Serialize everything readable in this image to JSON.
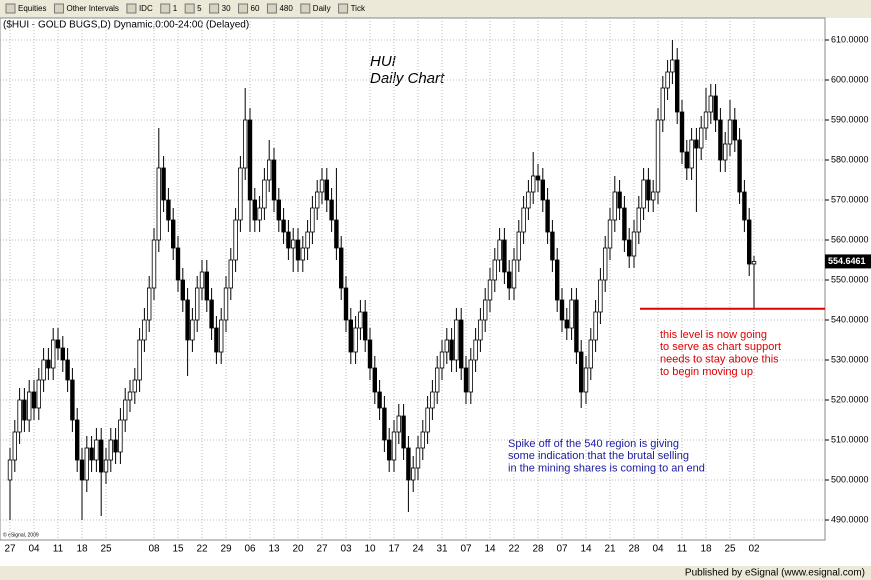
{
  "toolbar": {
    "items": [
      "Equities",
      "Other Intervals",
      "IDC",
      "1",
      "5",
      "30",
      "60",
      "480",
      "Daily",
      "Tick"
    ]
  },
  "chart_data": {
    "type": "candlestick",
    "title": "($HUI - GOLD BUGS,D) Dynamic,0:00-24:00 (Delayed)",
    "annotation_title": [
      "HUI",
      "Daily Chart"
    ],
    "annotations": [
      {
        "lines": [
          "this level is now going",
          "to serve as chart support",
          "needs to stay above this",
          "to begin moving up"
        ],
        "color": "#e00000"
      },
      {
        "lines": [
          "Spike off of the 540 region is giving",
          "some indication that the brutal selling",
          "in the mining shares is coming to an end"
        ],
        "color": "#1a1aa0"
      }
    ],
    "support_level": 542.8,
    "support_color": "#e00000",
    "up_color": "#ffffff",
    "down_color": "#000000",
    "ylim": [
      485,
      615.5
    ],
    "yticks": [
      {
        "value": 490,
        "label": "490.0000"
      },
      {
        "value": 500,
        "label": "500.0000"
      },
      {
        "value": 510,
        "label": "510.0000"
      },
      {
        "value": 520,
        "label": "520.0000"
      },
      {
        "value": 530,
        "label": "530.0000"
      },
      {
        "value": 540,
        "label": "540.0000"
      },
      {
        "value": 550,
        "label": "550.0000"
      },
      {
        "value": 560,
        "label": "560.0000"
      },
      {
        "value": 570,
        "label": "570.0000"
      },
      {
        "value": 580,
        "label": "580.0000"
      },
      {
        "value": 590,
        "label": "590.0000"
      },
      {
        "value": 600,
        "label": "600.0000"
      },
      {
        "value": 610,
        "label": "610.0000"
      }
    ],
    "grid": true,
    "categories": [
      "27",
      null,
      null,
      null,
      null,
      "04",
      null,
      null,
      null,
      null,
      "11",
      null,
      null,
      null,
      null,
      "18",
      null,
      null,
      null,
      null,
      "25",
      null,
      null,
      null,
      null,
      null,
      null,
      null,
      null,
      null,
      "08",
      null,
      null,
      null,
      null,
      "15",
      null,
      null,
      null,
      null,
      "22",
      null,
      null,
      null,
      null,
      "29",
      null,
      null,
      null,
      null,
      "06",
      null,
      null,
      null,
      null,
      "13",
      null,
      null,
      null,
      null,
      "20",
      null,
      null,
      null,
      null,
      "27",
      null,
      null,
      null,
      null,
      "03",
      null,
      null,
      null,
      null,
      "10",
      null,
      null,
      null,
      null,
      "17",
      null,
      null,
      null,
      null,
      "24",
      null,
      null,
      null,
      null,
      "31",
      null,
      null,
      null,
      null,
      "07",
      null,
      null,
      null,
      null,
      "14",
      null,
      null,
      null,
      null,
      "22",
      null,
      null,
      null,
      null,
      "28",
      null,
      null,
      null,
      null,
      "07",
      null,
      null,
      null,
      null,
      "14",
      null,
      null,
      null,
      null,
      "21",
      null,
      null,
      null,
      null,
      "28",
      null,
      null,
      null,
      null,
      "04",
      null,
      null,
      null,
      null,
      "11",
      null,
      null,
      null,
      null,
      "18",
      null,
      null,
      null,
      null,
      "25",
      null,
      null,
      null,
      null,
      "02"
    ],
    "ohlc": [
      [
        500,
        508,
        490,
        505
      ],
      [
        505,
        515,
        502,
        512
      ],
      [
        512,
        523,
        509,
        520
      ],
      [
        520,
        523,
        512,
        515
      ],
      [
        515,
        525,
        512,
        522
      ],
      [
        522,
        525,
        515,
        518
      ],
      [
        518,
        528,
        515,
        525
      ],
      [
        525,
        533,
        522,
        530
      ],
      [
        530,
        533,
        525,
        528
      ],
      [
        528,
        538,
        525,
        535
      ],
      [
        535,
        538,
        530,
        533
      ],
      [
        533,
        536,
        527,
        530
      ],
      [
        530,
        533,
        522,
        525
      ],
      [
        525,
        528,
        512,
        515
      ],
      [
        515,
        518,
        502,
        505
      ],
      [
        505,
        508,
        490,
        500
      ],
      [
        500,
        511,
        497,
        508
      ],
      [
        508,
        511,
        502,
        505
      ],
      [
        505,
        513,
        502,
        510
      ],
      [
        510,
        513,
        491,
        502
      ],
      [
        502,
        508,
        499,
        505
      ],
      [
        505,
        513,
        502,
        510
      ],
      [
        510,
        513,
        504,
        507
      ],
      [
        507,
        518,
        504,
        515
      ],
      [
        515,
        523,
        512,
        520
      ],
      [
        520,
        525,
        517,
        522
      ],
      [
        522,
        528,
        519,
        525
      ],
      [
        525,
        538,
        522,
        535
      ],
      [
        535,
        543,
        532,
        540
      ],
      [
        540,
        551,
        537,
        548
      ],
      [
        548,
        563,
        545,
        560
      ],
      [
        560,
        588,
        557,
        578
      ],
      [
        578,
        581,
        567,
        570
      ],
      [
        570,
        573,
        562,
        565
      ],
      [
        565,
        568,
        555,
        558
      ],
      [
        558,
        561,
        547,
        550
      ],
      [
        550,
        553,
        542,
        545
      ],
      [
        545,
        548,
        526,
        535
      ],
      [
        535,
        543,
        532,
        540
      ],
      [
        540,
        551,
        537,
        548
      ],
      [
        548,
        555,
        545,
        552
      ],
      [
        552,
        555,
        542,
        545
      ],
      [
        545,
        548,
        535,
        538
      ],
      [
        538,
        541,
        529,
        532
      ],
      [
        532,
        543,
        529,
        540
      ],
      [
        540,
        551,
        537,
        548
      ],
      [
        548,
        558,
        545,
        555
      ],
      [
        555,
        568,
        552,
        565
      ],
      [
        565,
        581,
        562,
        578
      ],
      [
        578,
        598,
        575,
        590
      ],
      [
        590,
        593,
        562,
        570
      ],
      [
        570,
        573,
        562,
        565
      ],
      [
        565,
        571,
        562,
        568
      ],
      [
        568,
        578,
        565,
        575
      ],
      [
        575,
        585,
        572,
        580
      ],
      [
        580,
        583,
        567,
        570
      ],
      [
        570,
        573,
        562,
        565
      ],
      [
        565,
        568,
        559,
        562
      ],
      [
        562,
        565,
        555,
        558
      ],
      [
        558,
        563,
        552,
        560
      ],
      [
        560,
        563,
        552,
        555
      ],
      [
        555,
        561,
        552,
        558
      ],
      [
        558,
        565,
        555,
        562
      ],
      [
        562,
        571,
        559,
        568
      ],
      [
        568,
        575,
        565,
        572
      ],
      [
        572,
        578,
        569,
        575
      ],
      [
        575,
        578,
        567,
        570
      ],
      [
        570,
        573,
        562,
        565
      ],
      [
        565,
        578,
        555,
        558
      ],
      [
        558,
        561,
        545,
        548
      ],
      [
        548,
        551,
        537,
        540
      ],
      [
        540,
        543,
        529,
        532
      ],
      [
        532,
        541,
        529,
        538
      ],
      [
        538,
        545,
        535,
        542
      ],
      [
        542,
        545,
        532,
        535
      ],
      [
        535,
        538,
        525,
        528
      ],
      [
        528,
        531,
        519,
        522
      ],
      [
        522,
        525,
        515,
        518
      ],
      [
        518,
        521,
        507,
        510
      ],
      [
        510,
        513,
        502,
        505
      ],
      [
        505,
        515,
        502,
        512
      ],
      [
        512,
        519,
        509,
        516
      ],
      [
        516,
        519,
        505,
        508
      ],
      [
        508,
        511,
        492,
        500
      ],
      [
        500,
        506,
        497,
        503
      ],
      [
        503,
        511,
        500,
        508
      ],
      [
        508,
        515,
        505,
        512
      ],
      [
        512,
        521,
        509,
        518
      ],
      [
        518,
        525,
        515,
        522
      ],
      [
        522,
        531,
        519,
        528
      ],
      [
        528,
        535,
        525,
        532
      ],
      [
        532,
        538,
        529,
        535
      ],
      [
        535,
        538,
        527,
        530
      ],
      [
        530,
        543,
        527,
        540
      ],
      [
        540,
        543,
        525,
        528
      ],
      [
        528,
        531,
        519,
        522
      ],
      [
        522,
        533,
        519,
        530
      ],
      [
        530,
        538,
        527,
        535
      ],
      [
        535,
        543,
        532,
        540
      ],
      [
        540,
        548,
        537,
        545
      ],
      [
        545,
        553,
        542,
        550
      ],
      [
        550,
        558,
        547,
        555
      ],
      [
        555,
        563,
        552,
        560
      ],
      [
        560,
        563,
        549,
        552
      ],
      [
        552,
        555,
        545,
        548
      ],
      [
        548,
        558,
        545,
        555
      ],
      [
        555,
        565,
        552,
        562
      ],
      [
        562,
        571,
        559,
        568
      ],
      [
        568,
        575,
        565,
        572
      ],
      [
        572,
        582,
        569,
        576
      ],
      [
        576,
        579,
        572,
        575
      ],
      [
        575,
        578,
        567,
        570
      ],
      [
        570,
        573,
        559,
        562
      ],
      [
        562,
        565,
        552,
        555
      ],
      [
        555,
        558,
        542,
        545
      ],
      [
        545,
        548,
        537,
        540
      ],
      [
        540,
        543,
        535,
        538
      ],
      [
        538,
        548,
        535,
        545
      ],
      [
        545,
        548,
        529,
        532
      ],
      [
        532,
        535,
        518,
        522
      ],
      [
        522,
        531,
        519,
        528
      ],
      [
        528,
        538,
        525,
        535
      ],
      [
        535,
        545,
        532,
        542
      ],
      [
        542,
        553,
        539,
        550
      ],
      [
        550,
        561,
        547,
        558
      ],
      [
        558,
        568,
        555,
        565
      ],
      [
        565,
        576,
        562,
        572
      ],
      [
        572,
        575,
        565,
        568
      ],
      [
        568,
        571,
        557,
        560
      ],
      [
        560,
        563,
        553,
        556
      ],
      [
        556,
        565,
        553,
        562
      ],
      [
        562,
        571,
        559,
        568
      ],
      [
        568,
        578,
        565,
        575
      ],
      [
        575,
        578,
        567,
        570
      ],
      [
        570,
        575,
        567,
        572
      ],
      [
        572,
        593,
        569,
        590
      ],
      [
        590,
        601,
        587,
        598
      ],
      [
        598,
        605,
        595,
        602
      ],
      [
        602,
        610,
        599,
        605
      ],
      [
        605,
        608,
        589,
        592
      ],
      [
        592,
        595,
        579,
        582
      ],
      [
        582,
        585,
        575,
        578
      ],
      [
        578,
        588,
        575,
        585
      ],
      [
        585,
        588,
        567,
        583
      ],
      [
        583,
        591,
        580,
        588
      ],
      [
        588,
        598,
        585,
        592
      ],
      [
        592,
        599,
        589,
        596
      ],
      [
        596,
        599,
        587,
        590
      ],
      [
        590,
        593,
        577,
        580
      ],
      [
        580,
        587,
        577,
        584
      ],
      [
        584,
        595,
        581,
        590
      ],
      [
        590,
        593,
        582,
        585
      ],
      [
        585,
        588,
        569,
        572
      ],
      [
        572,
        575,
        562,
        565
      ],
      [
        565,
        568,
        551,
        554
      ],
      [
        554,
        556,
        543,
        554.6461
      ]
    ]
  },
  "footer": {
    "copyright": "© eSignal, 2009",
    "published": "Published by eSignal (www.esignal.com)"
  }
}
